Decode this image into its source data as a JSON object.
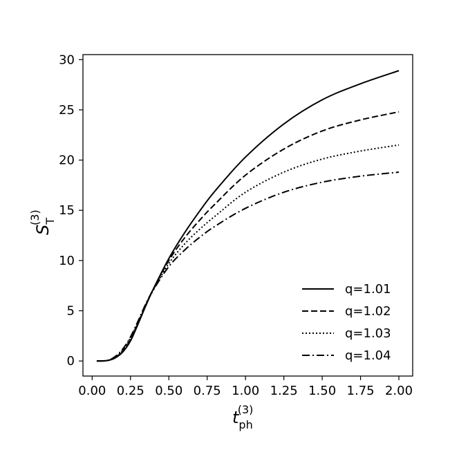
{
  "chart_data": {
    "type": "line",
    "title": "",
    "xlabel": "t_ph^(3)",
    "ylabel": "S_T^(3)",
    "xlim": [
      -0.06,
      2.09
    ],
    "ylim": [
      -1.5,
      30.5
    ],
    "xticks": [
      0.0,
      0.25,
      0.5,
      0.75,
      1.0,
      1.25,
      1.5,
      1.75,
      2.0
    ],
    "xtick_labels": [
      "0.00",
      "0.25",
      "0.50",
      "0.75",
      "1.00",
      "1.25",
      "1.50",
      "1.75",
      "2.00"
    ],
    "yticks": [
      0,
      5,
      10,
      15,
      20,
      25,
      30
    ],
    "ytick_labels": [
      "0",
      "5",
      "10",
      "15",
      "20",
      "25",
      "30"
    ],
    "grid": false,
    "legend_position": "lower-right",
    "color": "#000000",
    "series": [
      {
        "name": "q=1.01",
        "style": "solid",
        "x": [
          0.03,
          0.1,
          0.15,
          0.2,
          0.25,
          0.3,
          0.35,
          0.4,
          0.5,
          0.6,
          0.7,
          0.8,
          1.0,
          1.25,
          1.5,
          1.75,
          2.0
        ],
        "y": [
          0.0,
          0.05,
          0.3,
          0.9,
          2.0,
          3.7,
          5.5,
          7.2,
          10.2,
          12.7,
          14.9,
          16.9,
          20.3,
          23.6,
          26.0,
          27.6,
          28.9
        ]
      },
      {
        "name": "q=1.02",
        "style": "dashed",
        "x": [
          0.03,
          0.1,
          0.15,
          0.2,
          0.25,
          0.3,
          0.35,
          0.4,
          0.5,
          0.6,
          0.7,
          0.8,
          1.0,
          1.25,
          1.5,
          1.75,
          2.0
        ],
        "y": [
          0.0,
          0.05,
          0.35,
          1.0,
          2.1,
          3.8,
          5.6,
          7.2,
          10.0,
          12.2,
          14.0,
          15.6,
          18.5,
          21.1,
          22.9,
          24.0,
          24.8
        ]
      },
      {
        "name": "q=1.03",
        "style": "dotted",
        "x": [
          0.03,
          0.1,
          0.15,
          0.2,
          0.25,
          0.3,
          0.35,
          0.4,
          0.5,
          0.6,
          0.7,
          0.8,
          1.0,
          1.25,
          1.5,
          1.75,
          2.0
        ],
        "y": [
          0.0,
          0.05,
          0.4,
          1.1,
          2.3,
          3.9,
          5.6,
          7.1,
          9.7,
          11.6,
          13.1,
          14.4,
          16.8,
          18.8,
          20.1,
          20.9,
          21.5
        ]
      },
      {
        "name": "q=1.04",
        "style": "dashdot",
        "x": [
          0.03,
          0.1,
          0.15,
          0.2,
          0.25,
          0.3,
          0.35,
          0.4,
          0.5,
          0.6,
          0.7,
          0.8,
          1.0,
          1.25,
          1.5,
          1.75,
          2.0
        ],
        "y": [
          0.0,
          0.05,
          0.45,
          1.2,
          2.4,
          4.0,
          5.7,
          7.1,
          9.4,
          11.0,
          12.3,
          13.4,
          15.2,
          16.8,
          17.8,
          18.4,
          18.8
        ]
      }
    ]
  }
}
